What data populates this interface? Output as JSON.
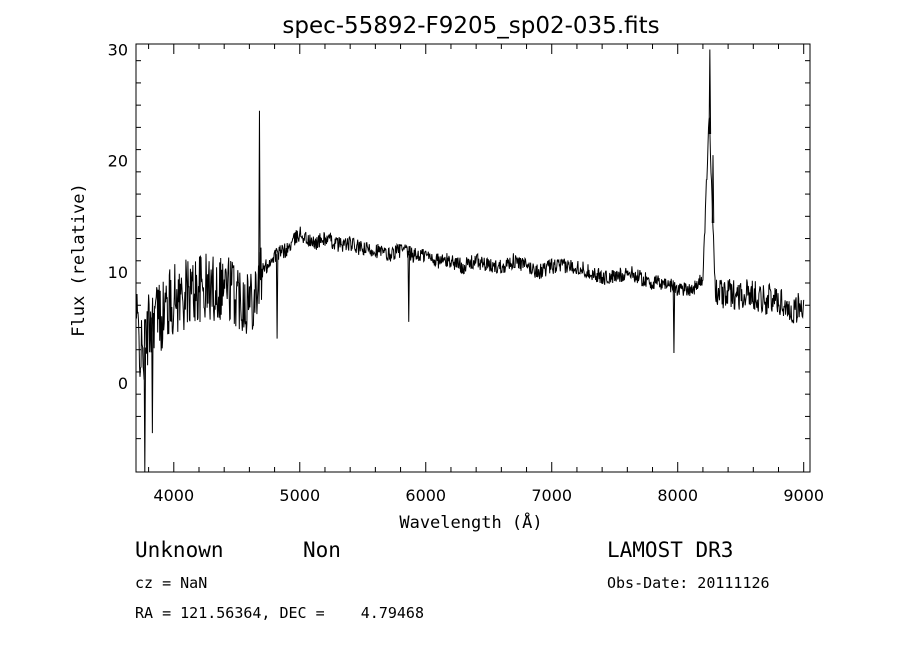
{
  "chart_data": {
    "type": "line",
    "title": "spec-55892-F9205_sp02-035.fits",
    "xlabel": "Wavelength (Å)",
    "ylabel": "Flux (relative)",
    "xlim": [
      3700,
      9050
    ],
    "ylim": [
      -8,
      30.5
    ],
    "xticks": [
      4000,
      5000,
      6000,
      7000,
      8000,
      9000
    ],
    "yticks": [
      0,
      10,
      20,
      30
    ],
    "grid": false,
    "line_color": "#000000",
    "series": [
      {
        "x": [
          3700,
          3750,
          3800,
          3850,
          3900,
          3950,
          4000,
          4100,
          4200,
          4300,
          4400,
          4500,
          4600,
          4650,
          4700,
          4800,
          4900,
          5000,
          5100,
          5200,
          5300,
          5400,
          5500,
          5600,
          5700,
          5800,
          5900,
          6000,
          6100,
          6200,
          6300,
          6400,
          6500,
          6600,
          6700,
          6800,
          6900,
          7000,
          7100,
          7200,
          7300,
          7400,
          7500,
          7600,
          7700,
          7800,
          7900,
          8000,
          8100,
          8150,
          8200,
          8250,
          8300,
          8350,
          8400,
          8500,
          8600,
          8700,
          8800,
          8900,
          9000
        ],
        "y": [
          6.0,
          2.0,
          5.0,
          6.5,
          6.0,
          7.0,
          7.5,
          8.0,
          8.5,
          8.5,
          9.0,
          8.0,
          7.5,
          8.5,
          10.0,
          11.5,
          12.0,
          13.5,
          12.5,
          13.0,
          12.5,
          12.5,
          12.0,
          12.0,
          11.5,
          12.0,
          11.5,
          11.5,
          11.0,
          11.0,
          10.5,
          11.0,
          10.5,
          10.5,
          11.0,
          10.5,
          10.0,
          10.5,
          10.5,
          10.5,
          10.0,
          9.5,
          9.5,
          10.0,
          9.5,
          9.0,
          9.0,
          8.5,
          8.5,
          8.7,
          9.5,
          24.0,
          8.0,
          8.0,
          8.0,
          8.0,
          8.0,
          7.5,
          7.5,
          6.5,
          7.0
        ]
      }
    ],
    "spikes": [
      {
        "x": 4680,
        "y": 24.5
      },
      {
        "x": 5865,
        "y": 5.5
      },
      {
        "x": 7970,
        "y": 2.7
      },
      {
        "x": 8255,
        "y": 30.0
      },
      {
        "x": 8280,
        "y": 20.5
      },
      {
        "x": 3770,
        "y": -8.0
      },
      {
        "x": 3830,
        "y": -4.5
      },
      {
        "x": 4820,
        "y": 4.0
      }
    ]
  },
  "info": {
    "class_label": "Unknown",
    "subclass_label": "Non",
    "survey": "LAMOST DR3",
    "cz": "cz = NaN",
    "obs_date": "Obs-Date: 20111126",
    "radec": "RA = 121.56364, DEC =    4.79468"
  }
}
